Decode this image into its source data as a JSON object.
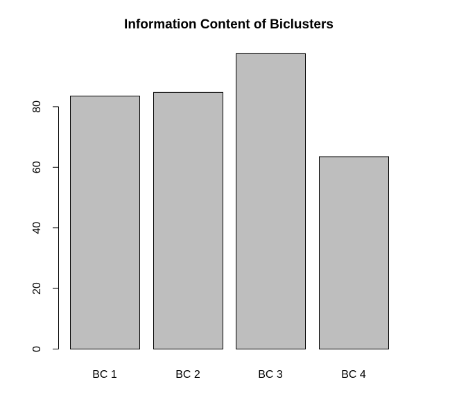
{
  "chart_data": {
    "type": "bar",
    "title": "Information Content of Biclusters",
    "xlabel": "",
    "ylabel": "",
    "categories": [
      "BC 1",
      "BC 2",
      "BC 3",
      "BC 4"
    ],
    "values": [
      83.5,
      84.7,
      97.5,
      63.5
    ],
    "ylim": [
      0,
      100
    ],
    "yticks": [
      0,
      20,
      40,
      60,
      80
    ],
    "bar_color": "#bebebe",
    "grid": false,
    "legend": "none"
  }
}
